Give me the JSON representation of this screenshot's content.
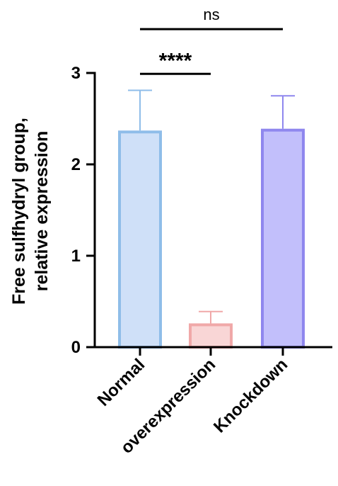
{
  "chart_data": {
    "type": "bar",
    "ylabel_lines": [
      "Free sulfhydryl group,",
      "relative expression"
    ],
    "categories": [
      "Normal",
      "overexpression",
      "Knockdown"
    ],
    "values": [
      2.37,
      0.26,
      2.39
    ],
    "errors": [
      0.44,
      0.13,
      0.36
    ],
    "ylim": [
      0,
      3
    ],
    "yticks": [
      0,
      1,
      2,
      3
    ],
    "bar_colors": [
      {
        "fill": "#cfe0f8",
        "stroke": "#8fbde9"
      },
      {
        "fill": "#f9d6d6",
        "stroke": "#f0a8a8"
      },
      {
        "fill": "#c2bffb",
        "stroke": "#8f87ee"
      }
    ],
    "significance": [
      {
        "from": 0,
        "to": 1,
        "label": "****",
        "y": 2.99
      },
      {
        "from": 0,
        "to": 2,
        "label": "ns",
        "y": 3.48
      }
    ]
  }
}
